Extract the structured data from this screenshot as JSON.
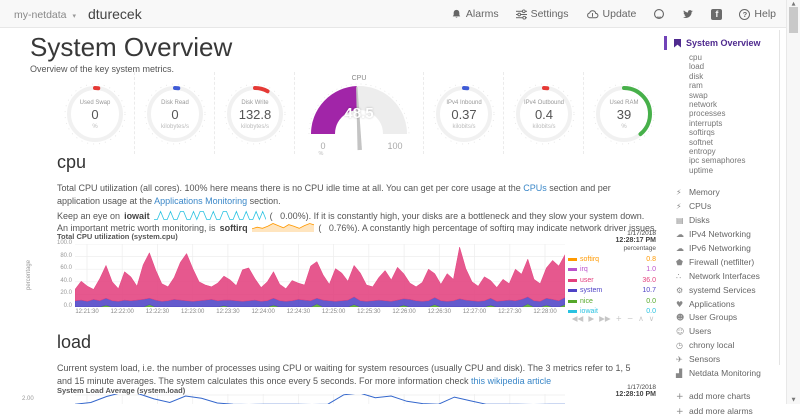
{
  "navbar": {
    "brand": "my-netdata",
    "hostname": "dturecek",
    "alarms": "Alarms",
    "settings": "Settings",
    "update": "Update",
    "help": "Help"
  },
  "page": {
    "title": "System Overview",
    "subtitle": "Overview of the key system metrics."
  },
  "gauges": [
    {
      "label": "Used Swap",
      "value": "0",
      "unit": "%",
      "color": "#e53935",
      "fraction": 0.02
    },
    {
      "label": "Disk Read",
      "value": "0",
      "unit": "kilobytes/s",
      "color": "#3f5bd6",
      "fraction": 0.02
    },
    {
      "label": "Disk Write",
      "value": "132.8",
      "unit": "kilobytes/s",
      "color": "#e53935",
      "fraction": 0.08
    },
    {
      "label": "CPU",
      "value": "48.5",
      "unit": "%",
      "min": "0",
      "max": "100",
      "color": "#a125a8",
      "fraction": 0.485
    },
    {
      "label": "IPv4 Inbound",
      "value": "0.37",
      "unit": "kilobits/s",
      "color": "#3f5bd6",
      "fraction": 0.02
    },
    {
      "label": "IPv4 Outbound",
      "value": "0.4",
      "unit": "kilobits/s",
      "color": "#e53935",
      "fraction": 0.02
    },
    {
      "label": "Used RAM",
      "value": "39",
      "unit": "%",
      "color": "#47b04a",
      "fraction": 0.39
    }
  ],
  "cpu_section": {
    "heading": "cpu",
    "p1_before": "Total CPU utilization (all cores). 100% here means there is no CPU idle time at all. You can get per core usage at the ",
    "link_cpus": "CPUs",
    "p1_mid": " section and per application usage at the ",
    "link_apps": "Applications Monitoring",
    "p1_after": " section.",
    "p2_before": "Keep an eye on ",
    "p2_bold": "iowait",
    "p2_after": "(   0.00%). If it is constantly high, your disks are a bottleneck and they slow your system down.",
    "p3_before": "An important metric worth monitoring, is ",
    "p3_bold": "softirq",
    "p3_after": "(   0.76%). A constantly high percentage of softirq may indicate network driver issues."
  },
  "cpu_chart": {
    "title": "Total CPU utilization (system.cpu)",
    "date": "1/17/2018",
    "time": "12:28:17 PM",
    "unit_header": "percentage",
    "legend": [
      {
        "name": "softirq",
        "value": "0.8",
        "color": "#ff9900"
      },
      {
        "name": "irq",
        "value": "1.0",
        "color": "#bb52cc"
      },
      {
        "name": "user",
        "value": "36.0",
        "color": "#e3417e"
      },
      {
        "name": "system",
        "value": "10.7",
        "color": "#4f43c6"
      },
      {
        "name": "nice",
        "value": "0.0",
        "color": "#55a82a"
      },
      {
        "name": "iowait",
        "value": "0.0",
        "color": "#29c2e1"
      }
    ],
    "controls": [
      "◀◀",
      "▶",
      "▶▶",
      "+",
      "−",
      "∧",
      "∨"
    ]
  },
  "load_section": {
    "heading": "load",
    "p_before": "Current system load, i.e. the number of processes using CPU or waiting for system resources (usually CPU and disk). The 3 metrics refer to 1, 5 and 15 minute averages. The system calculates this once every 5 seconds. For more information check ",
    "link": "this wikipedia article",
    "chart_title": "System Load Average (system.load)",
    "date": "1/17/2018",
    "time": "12:28:10 PM",
    "ytick": "2.00"
  },
  "sidebar": {
    "active": {
      "label": "System Overview"
    },
    "subitems": [
      "cpu",
      "load",
      "disk",
      "ram",
      "swap",
      "network",
      "processes",
      "interrupts",
      "softirqs",
      "softnet",
      "entropy",
      "ipc semaphores",
      "uptime"
    ],
    "sections": [
      {
        "icon": "bolt-icon",
        "glyph": "⚡",
        "label": "Memory"
      },
      {
        "icon": "bolt-icon",
        "glyph": "⚡",
        "label": "CPUs"
      },
      {
        "icon": "folder-icon",
        "glyph": "▤",
        "label": "Disks"
      },
      {
        "icon": "cloud-icon",
        "glyph": "☁",
        "label": "IPv4 Networking"
      },
      {
        "icon": "cloud-icon",
        "glyph": "☁",
        "label": "IPv6 Networking"
      },
      {
        "icon": "shield-icon",
        "glyph": "⬟",
        "label": "Firewall (netfilter)"
      },
      {
        "icon": "share-icon",
        "glyph": "∴",
        "label": "Network Interfaces"
      },
      {
        "icon": "gears-icon",
        "glyph": "⚙",
        "label": "systemd Services"
      },
      {
        "icon": "heart-icon",
        "glyph": "♥",
        "label": "Applications"
      },
      {
        "icon": "users-icon",
        "glyph": "☻",
        "label": "User Groups"
      },
      {
        "icon": "user-icon",
        "glyph": "☺",
        "label": "Users"
      },
      {
        "icon": "clock-icon",
        "glyph": "◷",
        "label": "chrony local"
      },
      {
        "icon": "sensors-icon",
        "glyph": "✈",
        "label": "Sensors"
      },
      {
        "icon": "chart-bars-icon",
        "glyph": "▟",
        "label": "Netdata Monitoring"
      }
    ],
    "footer": [
      {
        "icon": "plus-icon",
        "glyph": "+",
        "label": "add more charts"
      },
      {
        "icon": "plus-icon",
        "glyph": "+",
        "label": "add more alarms"
      }
    ]
  },
  "chart_data": [
    {
      "type": "area",
      "title": "Total CPU utilization (system.cpu)",
      "ylabel": "percentage",
      "ylim": [
        0,
        100
      ],
      "yticks": [
        "0.0",
        "20.0",
        "40.0",
        "60.0",
        "80.0",
        "100.0"
      ],
      "grid": true,
      "legend_position": "right",
      "x_labels": [
        "12:21:30",
        "12:22:00",
        "12:22:30",
        "12:23:00",
        "12:23:30",
        "12:24:00",
        "12:24:30",
        "12:25:00",
        "12:25:30",
        "12:26:00",
        "12:26:30",
        "12:27:00",
        "12:27:30",
        "12:28:00"
      ],
      "stack_order_bottom_to_top": [
        "nice",
        "system",
        "user"
      ],
      "series": [
        {
          "name": "nice",
          "color": "#55a82a",
          "values": [
            0,
            0,
            0,
            0,
            0,
            3,
            0,
            0,
            0,
            0,
            0,
            0,
            4,
            0,
            0,
            0,
            0,
            0,
            0,
            0,
            0,
            0,
            0,
            0,
            2,
            0,
            0,
            0,
            0,
            0,
            0,
            0,
            3,
            0,
            0,
            0,
            0,
            0,
            0,
            5,
            0,
            0,
            0,
            0,
            0,
            4,
            0,
            0,
            0,
            0,
            0,
            0,
            0,
            3,
            0,
            0,
            0,
            0,
            4,
            0,
            0,
            0,
            0,
            0,
            0,
            0,
            0,
            3,
            0,
            0,
            0,
            0,
            0,
            5,
            0,
            0,
            3,
            0,
            0,
            4
          ]
        },
        {
          "name": "system",
          "color": "#4f43c6",
          "values": [
            10,
            11,
            9,
            12,
            10,
            11,
            10,
            9,
            11,
            10,
            11,
            12,
            10,
            11,
            9,
            10,
            12,
            11,
            10,
            9,
            10,
            11,
            12,
            10,
            9,
            11,
            10,
            9,
            10,
            11,
            9,
            10,
            11,
            10,
            9,
            10,
            12,
            11,
            10,
            9,
            11,
            10,
            9,
            10,
            11,
            12,
            10,
            9,
            10,
            11,
            10,
            9,
            11,
            10,
            12,
            10,
            9,
            10,
            11,
            10,
            9,
            10,
            13,
            11,
            10,
            9,
            10,
            11,
            9,
            10,
            11,
            10,
            12,
            11,
            10,
            9,
            11,
            12,
            10,
            11
          ]
        },
        {
          "name": "user",
          "color": "#e3417e",
          "values": [
            18,
            30,
            24,
            16,
            35,
            52,
            30,
            20,
            45,
            38,
            22,
            55,
            72,
            48,
            28,
            22,
            35,
            60,
            75,
            52,
            30,
            24,
            20,
            28,
            38,
            32,
            24,
            50,
            52,
            34,
            22,
            30,
            42,
            26,
            20,
            32,
            26,
            24,
            55,
            58,
            40,
            26,
            52,
            44,
            30,
            50,
            44,
            26,
            22,
            36,
            48,
            34,
            52,
            40,
            26,
            22,
            30,
            50,
            38,
            26,
            44,
            34,
            82,
            50,
            30,
            24,
            38,
            28,
            22,
            34,
            26,
            50,
            40,
            60,
            34,
            28,
            48,
            62,
            55,
            68
          ]
        }
      ],
      "legend_current": {
        "softirq": 0.8,
        "irq": 1.0,
        "user": 36.0,
        "system": 10.7,
        "nice": 0.0,
        "iowait": 0.0
      }
    },
    {
      "type": "line",
      "name": "iowait-sparkline",
      "color": "#29c2e1",
      "values": [
        0,
        0,
        2,
        0,
        0,
        2,
        0,
        0,
        2,
        2,
        0,
        0,
        2,
        0,
        2,
        2,
        0,
        0,
        2,
        0,
        0,
        2,
        2,
        0,
        0,
        2,
        0,
        0,
        2,
        0,
        0,
        2,
        0,
        2,
        0
      ]
    },
    {
      "type": "area",
      "name": "softirq-sparkline",
      "color": "#ff9900",
      "values": [
        1,
        1.6,
        1.2,
        2,
        3,
        2.2,
        1.4,
        2.6,
        2,
        1.2,
        2.2,
        3,
        2.4,
        2,
        1.6,
        2.2,
        1.2,
        1.6,
        2,
        2.6,
        2.2,
        1.6,
        1.2,
        2,
        1.6,
        2.6,
        2,
        1.6,
        1.2,
        1.4
      ]
    },
    {
      "type": "line",
      "name": "load-average-partial",
      "color": "#3366cc",
      "ytick_top": "2.00",
      "values": [
        0.3,
        0.6,
        1.6,
        2.3,
        2.1,
        1.2,
        0.6,
        1.7,
        1.3,
        0.5,
        0.3,
        0.25,
        0.3,
        0.28,
        0.3,
        0.26,
        0.3,
        1.9,
        2.2,
        1.4,
        1.7,
        0.8,
        0.4,
        0.3,
        1.5,
        0.9,
        0.3,
        0.28,
        0.3,
        0.26,
        0.3,
        0.3
      ]
    }
  ]
}
